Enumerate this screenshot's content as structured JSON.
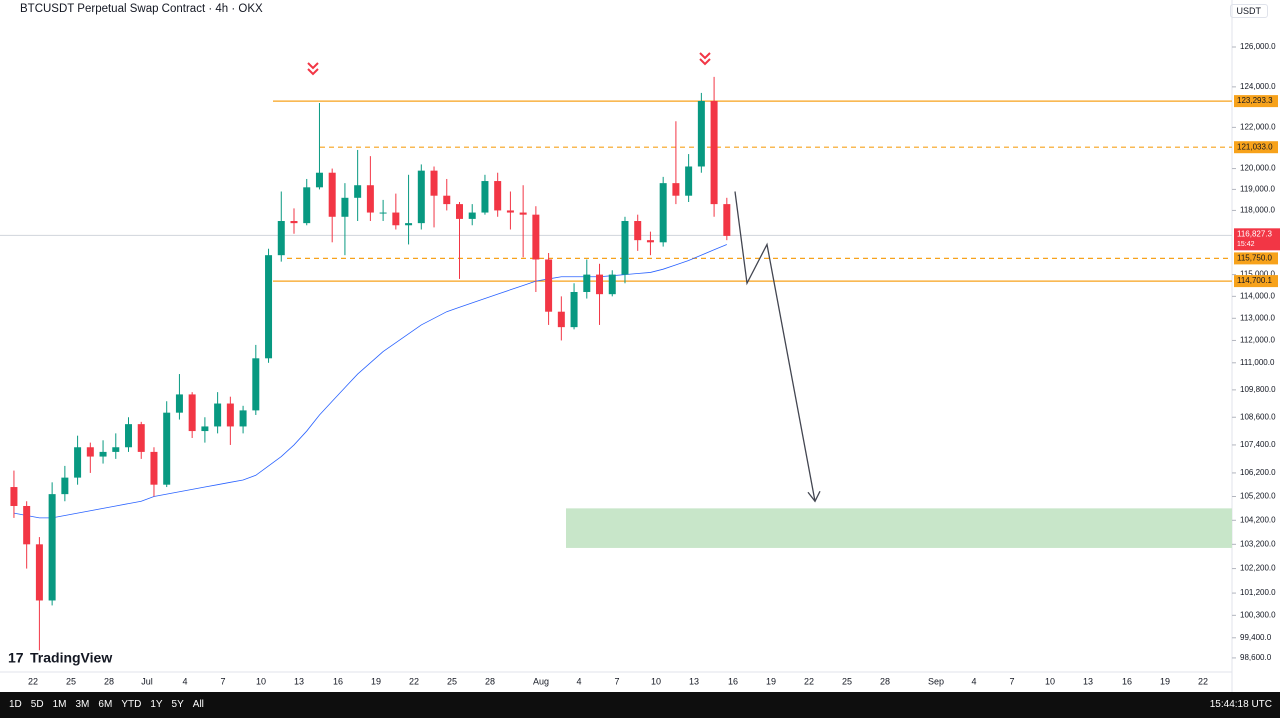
{
  "header": {
    "title": "BTCUSDT Perpetual Swap Contract · 4h · OKX",
    "currency": "USDT",
    "logo": "TradingView"
  },
  "toolbar": {
    "ranges": [
      "1D",
      "5D",
      "1M",
      "3M",
      "6M",
      "YTD",
      "1Y",
      "5Y",
      "All"
    ],
    "clock": "15:44:18 UTC"
  },
  "chart_data": {
    "type": "candlestick",
    "log": true,
    "up_color": "#089981",
    "down_color": "#f23645",
    "open": [
      105600,
      104800,
      103200,
      100900,
      105300,
      106000,
      107300,
      106900,
      107100,
      107300,
      108300,
      107100,
      105700,
      108800,
      109600,
      108000,
      108200,
      109200,
      108200,
      108900,
      111200,
      115900,
      117500,
      117400,
      119100,
      119800,
      117700,
      118600,
      119200,
      117900,
      117900,
      117300,
      117400,
      119900,
      118700,
      118300,
      117600,
      117900,
      119400,
      118000,
      117900,
      117800,
      115700,
      113300,
      112600,
      114200,
      115000,
      114100,
      115000,
      117500,
      116600,
      116500,
      119300,
      118700,
      120100,
      123300,
      118300
    ],
    "high": [
      106300,
      105000,
      103500,
      105800,
      106500,
      107800,
      107500,
      107600,
      107900,
      108600,
      108400,
      107300,
      109300,
      110500,
      109700,
      108600,
      109700,
      109500,
      109100,
      111800,
      116200,
      118900,
      118100,
      119500,
      123200,
      120000,
      119300,
      120900,
      120600,
      118500,
      118800,
      119700,
      120200,
      120100,
      119500,
      118400,
      118300,
      119700,
      119800,
      118900,
      119200,
      118200,
      116000,
      114000,
      114600,
      115700,
      115500,
      115200,
      117700,
      117800,
      117000,
      119600,
      122300,
      120700,
      123700,
      124500,
      118600
    ],
    "low": [
      104300,
      102200,
      98900,
      100700,
      105000,
      105700,
      106200,
      106600,
      106800,
      107100,
      106800,
      105200,
      105600,
      108500,
      107700,
      107500,
      107900,
      107400,
      107900,
      108700,
      111000,
      115600,
      116900,
      117300,
      119000,
      116500,
      115900,
      117500,
      117500,
      117500,
      117100,
      116400,
      117100,
      117200,
      118000,
      114800,
      117300,
      117800,
      117700,
      117100,
      115800,
      114200,
      112700,
      112000,
      112500,
      113900,
      112700,
      114000,
      114600,
      116100,
      115900,
      116300,
      118300,
      118400,
      119800,
      117700,
      116600
    ],
    "close": [
      104800,
      103200,
      100900,
      105300,
      106000,
      107300,
      106900,
      107100,
      107300,
      108300,
      107100,
      105700,
      108800,
      109600,
      108000,
      108200,
      109200,
      108200,
      108900,
      111200,
      115900,
      117500,
      117400,
      119100,
      119800,
      117700,
      118600,
      119200,
      117900,
      117900,
      117300,
      117400,
      119900,
      118700,
      118300,
      117600,
      117900,
      119400,
      118000,
      117900,
      117800,
      115700,
      113300,
      112600,
      114200,
      115000,
      114100,
      115000,
      117500,
      116600,
      116500,
      119300,
      118700,
      120100,
      123300,
      118300,
      116800
    ],
    "moving_average": {
      "color": "#2962ff",
      "values": [
        104500,
        104400,
        104300,
        104300,
        104400,
        104500,
        104600,
        104700,
        104800,
        104900,
        105000,
        105200,
        105300,
        105400,
        105500,
        105600,
        105700,
        105800,
        105900,
        106100,
        106500,
        106900,
        107400,
        108000,
        108700,
        109300,
        109900,
        110500,
        111000,
        111500,
        111900,
        112300,
        112700,
        113000,
        113300,
        113500,
        113700,
        113900,
        114100,
        114300,
        114500,
        114700,
        114800,
        114900,
        114900,
        114900,
        114900,
        114950,
        115000,
        115050,
        115100,
        115250,
        115450,
        115650,
        115900,
        116150,
        116400
      ]
    },
    "ylim": [
      97730,
      128400
    ],
    "yticks": [
      {
        "value": 126000,
        "label": "126,000.0"
      },
      {
        "value": 124000,
        "label": "124,000.0"
      },
      {
        "value": 122000,
        "label": "122,000.0"
      },
      {
        "value": 120000,
        "label": "120,000.0"
      },
      {
        "value": 119000,
        "label": "119,000.0"
      },
      {
        "value": 118000,
        "label": "118,000.0"
      },
      {
        "value": 115000,
        "label": "115,000.0"
      },
      {
        "value": 114000,
        "label": "114,000.0"
      },
      {
        "value": 113000,
        "label": "113,000.0"
      },
      {
        "value": 112000,
        "label": "112,000.0"
      },
      {
        "value": 111000,
        "label": "111,000.0"
      },
      {
        "value": 109800,
        "label": "109,800.0"
      },
      {
        "value": 108600,
        "label": "108,600.0"
      },
      {
        "value": 107400,
        "label": "107,400.0"
      },
      {
        "value": 106200,
        "label": "106,200.0"
      },
      {
        "value": 105200,
        "label": "105,200.0"
      },
      {
        "value": 104200,
        "label": "104,200.0"
      },
      {
        "value": 103200,
        "label": "103,200.0"
      },
      {
        "value": 102200,
        "label": "102,200.0"
      },
      {
        "value": 101200,
        "label": "101,200.0"
      },
      {
        "value": 100300,
        "label": "100,300.0"
      },
      {
        "value": 99400,
        "label": "99,400.0"
      },
      {
        "value": 98600,
        "label": "98,600.0"
      }
    ],
    "xticks": [
      "22",
      "25",
      "28",
      "Jul",
      "4",
      "7",
      "10",
      "13",
      "16",
      "19",
      "22",
      "25",
      "28",
      "Aug",
      "4",
      "7",
      "10",
      "13",
      "16",
      "19",
      "22",
      "25",
      "28",
      "Sep",
      "4",
      "7",
      "10",
      "13",
      "16",
      "19",
      "22"
    ],
    "levels": [
      {
        "value": 123293.3,
        "label": "123,293.3",
        "style": "solid",
        "color": "#f7a21b"
      },
      {
        "value": 121033.0,
        "label": "121,033.0",
        "style": "dashed",
        "color": "#f7a21b"
      },
      {
        "value": 115750.0,
        "label": "115,750.0",
        "style": "dashed",
        "color": "#f7a21b"
      },
      {
        "value": 114700.1,
        "label": "114,700.1",
        "style": "solid",
        "color": "#f7a21b"
      }
    ],
    "current_price": {
      "value": 116827.3,
      "label": "116,827.3",
      "countdown": "15:42",
      "color": "#f23645"
    },
    "target_zone": {
      "range": [
        103050,
        104700
      ],
      "color": "#c8e6c9"
    },
    "projection": [
      118900,
      114600,
      116400,
      105000
    ]
  }
}
